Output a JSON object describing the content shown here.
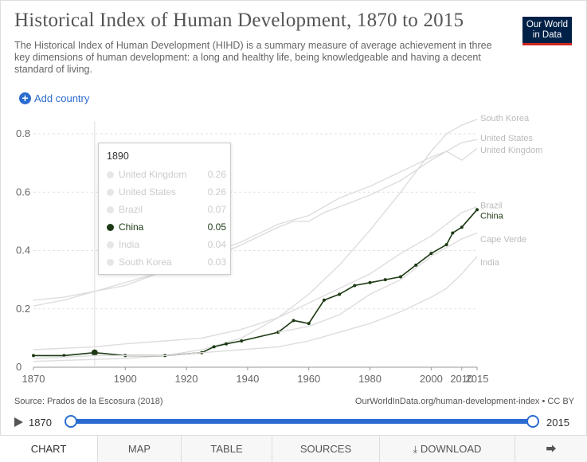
{
  "header": {
    "title": "Historical Index of Human Development, 1870 to 2015",
    "subtitle": "The Historical Index of Human Development (HIHD) is a summary measure of average achievement in three key dimensions of human development: a long and healthy life, being knowledgeable and having a decent standard of living.",
    "logo_line1": "Our World",
    "logo_line2": "in Data",
    "add_country": "Add country"
  },
  "tooltip": {
    "year": "1890",
    "rows": [
      {
        "name": "United Kingdom",
        "value": "0.26"
      },
      {
        "name": "United States",
        "value": "0.26"
      },
      {
        "name": "Brazil",
        "value": "0.07"
      },
      {
        "name": "China",
        "value": "0.05"
      },
      {
        "name": "India",
        "value": "0.04"
      },
      {
        "name": "South Korea",
        "value": "0.03"
      }
    ]
  },
  "footer": {
    "source": "Source: Prados de la Escosura (2018)",
    "license": "OurWorldInData.org/human-development-index • CC BY",
    "timeline_start": "1870",
    "timeline_end": "2015"
  },
  "tabs": [
    "CHART",
    "MAP",
    "TABLE",
    "SOURCES",
    "DOWNLOAD"
  ],
  "colors": {
    "china": "#1d3a14",
    "faded": "#dddddd",
    "accent": "#2a6cd0",
    "logo_bg": "#002147",
    "logo_bar": "#ce261e"
  },
  "chart_data": {
    "type": "line",
    "xlim": [
      1870,
      2015
    ],
    "ylim": [
      0,
      0.8
    ],
    "x_ticks": [
      1870,
      1900,
      1920,
      1940,
      1960,
      1980,
      2000,
      2010,
      2015
    ],
    "y_ticks": [
      0,
      0.2,
      0.4,
      0.6,
      0.8
    ],
    "y_tick_labels": [
      "0",
      "0.2",
      "0.4",
      "0.6",
      "0.8"
    ],
    "hover_year": 1890,
    "highlighted": "China",
    "series": [
      {
        "name": "South Korea",
        "x": [
          1870,
          1900,
          1913,
          1925,
          1938,
          1950,
          1960,
          1970,
          1980,
          1990,
          2000,
          2005,
          2010,
          2015
        ],
        "y": [
          0.02,
          0.03,
          0.04,
          0.06,
          0.1,
          0.17,
          0.25,
          0.35,
          0.47,
          0.6,
          0.74,
          0.8,
          0.83,
          0.85
        ]
      },
      {
        "name": "United States",
        "x": [
          1870,
          1880,
          1890,
          1900,
          1913,
          1925,
          1938,
          1950,
          1960,
          1970,
          1980,
          1990,
          2000,
          2005,
          2010,
          2015
        ],
        "y": [
          0.23,
          0.24,
          0.26,
          0.28,
          0.33,
          0.38,
          0.43,
          0.49,
          0.52,
          0.58,
          0.62,
          0.67,
          0.72,
          0.74,
          0.77,
          0.78
        ]
      },
      {
        "name": "United Kingdom",
        "x": [
          1870,
          1880,
          1890,
          1900,
          1913,
          1925,
          1938,
          1950,
          1955,
          1960,
          1965,
          1970,
          1980,
          1990,
          2000,
          2005,
          2010,
          2015
        ],
        "y": [
          0.21,
          0.23,
          0.26,
          0.29,
          0.33,
          0.36,
          0.42,
          0.48,
          0.5,
          0.5,
          0.53,
          0.55,
          0.59,
          0.64,
          0.71,
          0.74,
          0.71,
          0.75
        ]
      },
      {
        "name": "Brazil",
        "x": [
          1870,
          1890,
          1900,
          1913,
          1925,
          1938,
          1950,
          1960,
          1970,
          1980,
          1990,
          2000,
          2005,
          2010,
          2015
        ],
        "y": [
          0.06,
          0.07,
          0.08,
          0.09,
          0.1,
          0.13,
          0.17,
          0.22,
          0.27,
          0.32,
          0.39,
          0.45,
          0.49,
          0.53,
          0.55
        ]
      },
      {
        "name": "China",
        "x": [
          1870,
          1880,
          1890,
          1900,
          1913,
          1925,
          1929,
          1933,
          1938,
          1950,
          1955,
          1960,
          1965,
          1970,
          1975,
          1980,
          1985,
          1990,
          1995,
          2000,
          2005,
          2007,
          2010,
          2015
        ],
        "y": [
          0.04,
          0.04,
          0.05,
          0.04,
          0.04,
          0.05,
          0.07,
          0.08,
          0.09,
          0.12,
          0.16,
          0.15,
          0.23,
          0.25,
          0.28,
          0.29,
          0.3,
          0.31,
          0.35,
          0.39,
          0.42,
          0.46,
          0.48,
          0.54
        ]
      },
      {
        "name": "Cape Verde",
        "x": [
          1950,
          1960,
          1970,
          1980,
          1990,
          2000,
          2010,
          2015
        ],
        "y": [
          0.12,
          0.14,
          0.18,
          0.25,
          0.3,
          0.38,
          0.44,
          0.46
        ]
      },
      {
        "name": "India",
        "x": [
          1870,
          1890,
          1900,
          1913,
          1925,
          1938,
          1950,
          1960,
          1970,
          1980,
          1990,
          2000,
          2005,
          2010,
          2015
        ],
        "y": [
          0.03,
          0.04,
          0.04,
          0.04,
          0.05,
          0.06,
          0.07,
          0.09,
          0.12,
          0.15,
          0.19,
          0.24,
          0.27,
          0.32,
          0.38
        ]
      }
    ],
    "end_labels": [
      {
        "name": "South Korea"
      },
      {
        "name": "United States"
      },
      {
        "name": "United Kingdom"
      },
      {
        "name": "Brazil"
      },
      {
        "name": "China"
      },
      {
        "name": "Cape Verde"
      },
      {
        "name": "India"
      }
    ]
  }
}
